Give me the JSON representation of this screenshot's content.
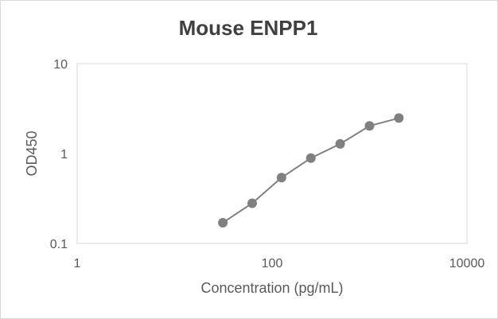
{
  "chart_data": {
    "type": "scatter",
    "title": "Mouse ENPP1",
    "xlabel": "Concentration (pg/mL)",
    "ylabel": "OD450",
    "xscale": "log",
    "yscale": "log",
    "xlim": [
      1,
      10000
    ],
    "ylim": [
      0.1,
      10
    ],
    "x_ticks": [
      "1",
      "100",
      "10000"
    ],
    "y_ticks": [
      "0.1",
      "1",
      "10"
    ],
    "grid": false,
    "plot_area_border": true,
    "connecting_line": true,
    "marker": "circle",
    "series_color": "#808080",
    "series": [
      {
        "x": [
          31.25,
          62.5,
          125,
          250,
          500,
          1000,
          2000
        ],
        "y": [
          0.17,
          0.28,
          0.54,
          0.89,
          1.28,
          2.03,
          2.48
        ]
      }
    ]
  }
}
